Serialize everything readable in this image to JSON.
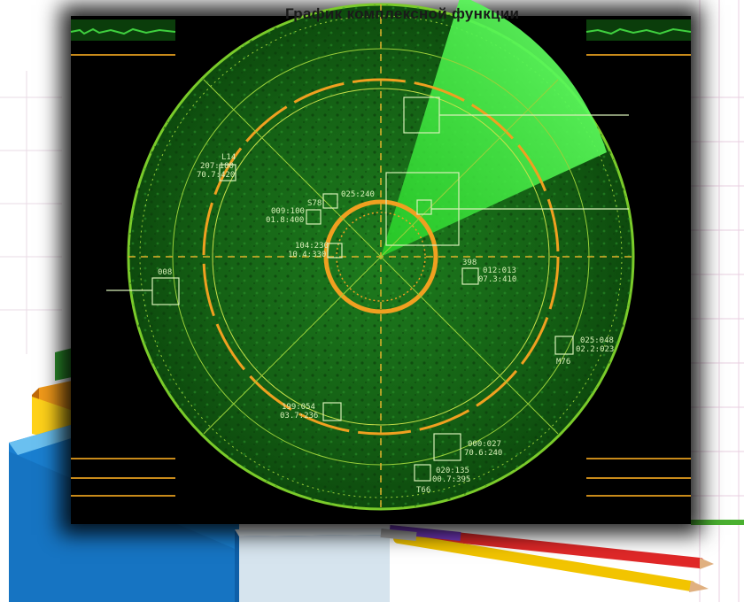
{
  "title": "График комплексной функции",
  "radar": {
    "targets": [
      {
        "id": "L14",
        "line1": "207:180",
        "line2": "70.7:420"
      },
      {
        "id": "S78",
        "line1": "025:240",
        "line2": "009:100",
        "line3": "01.8:400"
      },
      {
        "id": "",
        "line1": "104:230",
        "line2": "10.4:330"
      },
      {
        "id": "398",
        "line1": "012:013",
        "line2": "07.3:410"
      },
      {
        "id": "M76",
        "line1": "025:048",
        "line2": "02.2:023"
      },
      {
        "id": "",
        "line1": "199:054",
        "line2": "03.7:236"
      },
      {
        "id": "",
        "line1": "000:027",
        "line2": "70.6:240"
      },
      {
        "id": "T66",
        "line1": "020:135",
        "line2": "00.7:395"
      },
      {
        "id": "008",
        "line1": "",
        "line2": ""
      }
    ]
  },
  "colors": {
    "radar_green": "#1f7a1f",
    "radar_dark": "#0c4a0c",
    "ring_orange": "#f0a020",
    "sweep": "#3cff3c",
    "grid_pink": "#e6c8dc"
  }
}
